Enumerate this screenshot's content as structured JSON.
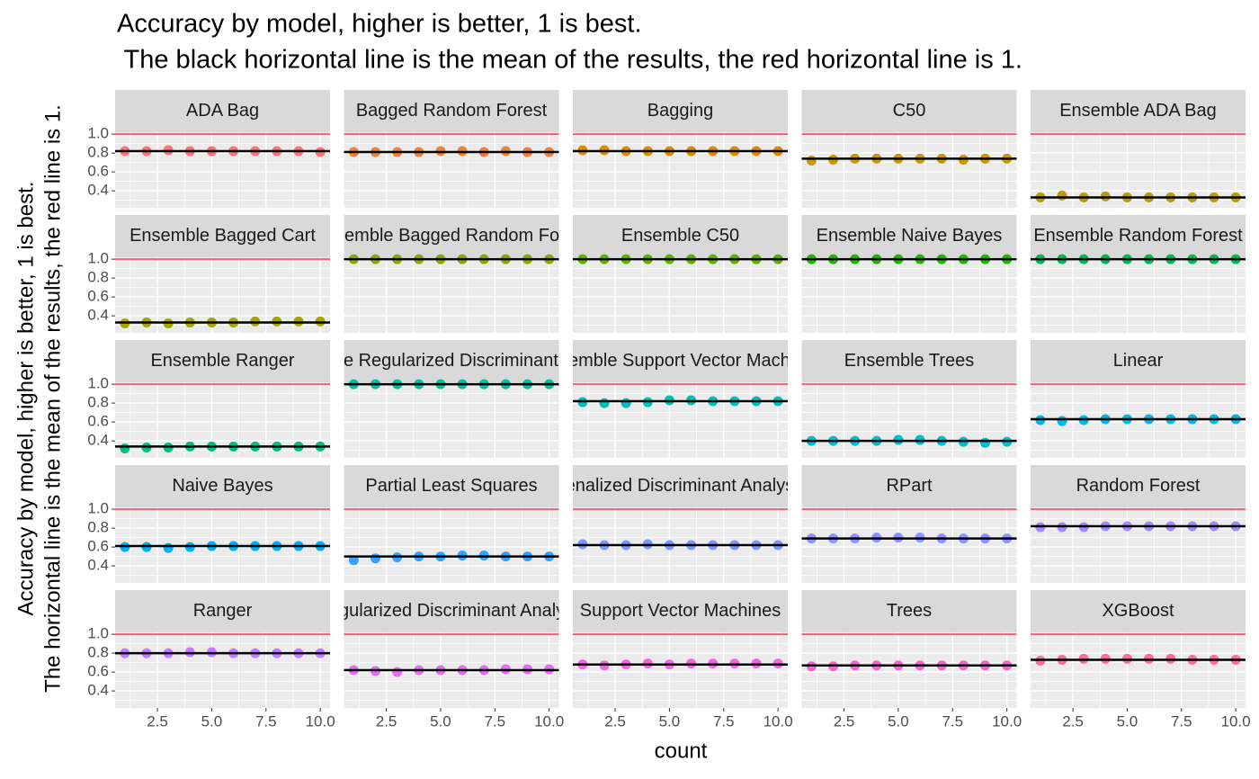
{
  "chart_data": {
    "type": "scatter",
    "title": [
      "Accuracy by model, higher is better, 1 is best.",
      " The black horizontal line is the mean of the results, the red horizontal line is 1."
    ],
    "ylabel": [
      "Accuracy by model, higher is better, 1 is best.",
      "The horizontal line is the mean of the results, the red line is 1."
    ],
    "xlabel": "count",
    "x": [
      1,
      2,
      3,
      4,
      5,
      6,
      7,
      8,
      9,
      10
    ],
    "xlim": [
      0.55,
      10.45
    ],
    "xticks": [
      2.5,
      {
        "value": 5,
        "label": "5.0"
      },
      7.5,
      {
        "value": 10,
        "label": "10.0"
      }
    ],
    "ylim": [
      0.22,
      1.02
    ],
    "yticks": [
      0.4,
      0.6,
      0.8,
      {
        "value": 1,
        "label": "1.0"
      }
    ],
    "grid": true,
    "reference_line": 1,
    "reference_color": "#f0607a",
    "mean_color": "#000000",
    "facets": [
      {
        "name": "ADA Bag",
        "color": "#F8766D",
        "values": [
          0.82,
          0.82,
          0.83,
          0.82,
          0.82,
          0.82,
          0.82,
          0.82,
          0.82,
          0.81
        ],
        "mean": 0.82
      },
      {
        "name": "Bagged Random Forest",
        "color": "#EC8239",
        "values": [
          0.81,
          0.81,
          0.81,
          0.81,
          0.82,
          0.82,
          0.81,
          0.82,
          0.81,
          0.81
        ],
        "mean": 0.81
      },
      {
        "name": "Bagging",
        "color": "#DF8B00",
        "values": [
          0.83,
          0.83,
          0.82,
          0.82,
          0.82,
          0.82,
          0.82,
          0.82,
          0.82,
          0.82
        ],
        "mean": 0.82
      },
      {
        "name": "C50",
        "color": "#CE9500",
        "values": [
          0.72,
          0.73,
          0.74,
          0.74,
          0.74,
          0.74,
          0.74,
          0.73,
          0.74,
          0.74
        ],
        "mean": 0.74
      },
      {
        "name": "Ensemble ADA Bag",
        "color": "#BA9E00",
        "values": [
          0.33,
          0.35,
          0.33,
          0.34,
          0.33,
          0.33,
          0.33,
          0.33,
          0.33,
          0.33
        ],
        "mean": 0.33
      },
      {
        "name": "Ensemble Bagged Cart",
        "color": "#A5A400",
        "values": [
          0.32,
          0.33,
          0.32,
          0.33,
          0.33,
          0.33,
          0.34,
          0.34,
          0.34,
          0.34
        ],
        "mean": 0.33
      },
      {
        "name": "Ensemble Bagged Random Forest",
        "color": "#85AD00",
        "values": [
          1,
          1,
          1,
          1,
          1,
          1,
          1,
          1,
          1,
          1
        ],
        "mean": 1
      },
      {
        "name": "Ensemble C50",
        "color": "#5EB300",
        "values": [
          1,
          1,
          1,
          1,
          1,
          1,
          1,
          1,
          1,
          1
        ],
        "mean": 1
      },
      {
        "name": "Ensemble Naive Bayes",
        "color": "#1FB800",
        "values": [
          1,
          1,
          1,
          1,
          1,
          1,
          1,
          1,
          1,
          1
        ],
        "mean": 1
      },
      {
        "name": "Ensemble Random Forest",
        "color": "#00BB4E",
        "values": [
          1,
          1,
          1,
          1,
          1,
          1,
          1,
          1,
          1,
          1
        ],
        "mean": 1
      },
      {
        "name": "Ensemble Ranger",
        "color": "#00BF7D",
        "values": [
          0.32,
          0.33,
          0.33,
          0.34,
          0.34,
          0.34,
          0.34,
          0.34,
          0.34,
          0.34
        ],
        "mean": 0.34
      },
      {
        "name": "Ensemble Regularized Discriminant Analysis",
        "color": "#00C1A0",
        "values": [
          1,
          1,
          1,
          1,
          1,
          1,
          1,
          1,
          1,
          1
        ],
        "mean": 1
      },
      {
        "name": "Ensemble Support Vector Machines",
        "color": "#00C0B8",
        "values": [
          0.81,
          0.8,
          0.8,
          0.81,
          0.83,
          0.83,
          0.82,
          0.82,
          0.82,
          0.82
        ],
        "mean": 0.82
      },
      {
        "name": "Ensemble Trees",
        "color": "#00BDD0",
        "values": [
          0.4,
          0.4,
          0.4,
          0.4,
          0.41,
          0.41,
          0.4,
          0.39,
          0.38,
          0.39
        ],
        "mean": 0.4
      },
      {
        "name": "Linear",
        "color": "#00B8E5",
        "values": [
          0.62,
          0.61,
          0.62,
          0.63,
          0.63,
          0.63,
          0.63,
          0.63,
          0.63,
          0.63
        ],
        "mean": 0.63
      },
      {
        "name": "Naive Bayes",
        "color": "#00B0F6",
        "values": [
          0.6,
          0.6,
          0.59,
          0.6,
          0.61,
          0.61,
          0.61,
          0.61,
          0.61,
          0.61
        ],
        "mean": 0.61
      },
      {
        "name": "Partial Least Squares",
        "color": "#35A2FF",
        "values": [
          0.46,
          0.48,
          0.49,
          0.5,
          0.5,
          0.51,
          0.51,
          0.5,
          0.5,
          0.5
        ],
        "mean": 0.5
      },
      {
        "name": "Penalized Discriminant Analysis",
        "color": "#7997FF",
        "values": [
          0.63,
          0.62,
          0.62,
          0.63,
          0.62,
          0.62,
          0.62,
          0.62,
          0.62,
          0.62
        ],
        "mean": 0.62
      },
      {
        "name": "RPart",
        "color": "#8F91FF",
        "values": [
          0.69,
          0.69,
          0.69,
          0.7,
          0.7,
          0.7,
          0.69,
          0.69,
          0.69,
          0.69
        ],
        "mean": 0.69
      },
      {
        "name": "Random Forest",
        "color": "#A58AFF",
        "values": [
          0.81,
          0.81,
          0.81,
          0.82,
          0.82,
          0.82,
          0.82,
          0.82,
          0.82,
          0.82
        ],
        "mean": 0.82
      },
      {
        "name": "Ranger",
        "color": "#C77CFF",
        "values": [
          0.8,
          0.8,
          0.8,
          0.81,
          0.81,
          0.8,
          0.8,
          0.8,
          0.8,
          0.8
        ],
        "mean": 0.8
      },
      {
        "name": "Regularized Discriminant Analysis",
        "color": "#E76BF3",
        "values": [
          0.62,
          0.61,
          0.6,
          0.62,
          0.62,
          0.62,
          0.62,
          0.63,
          0.63,
          0.63
        ],
        "mean": 0.62
      },
      {
        "name": "Support Vector Machines",
        "color": "#F564E3",
        "values": [
          0.68,
          0.67,
          0.68,
          0.69,
          0.68,
          0.69,
          0.69,
          0.69,
          0.69,
          0.69
        ],
        "mean": 0.68
      },
      {
        "name": "Trees",
        "color": "#FB61D7",
        "values": [
          0.66,
          0.66,
          0.67,
          0.67,
          0.67,
          0.67,
          0.67,
          0.67,
          0.67,
          0.67
        ],
        "mean": 0.67
      },
      {
        "name": "XGBoost",
        "color": "#FF6A98",
        "values": [
          0.72,
          0.73,
          0.74,
          0.74,
          0.74,
          0.74,
          0.74,
          0.73,
          0.73,
          0.73
        ],
        "mean": 0.73
      }
    ]
  }
}
